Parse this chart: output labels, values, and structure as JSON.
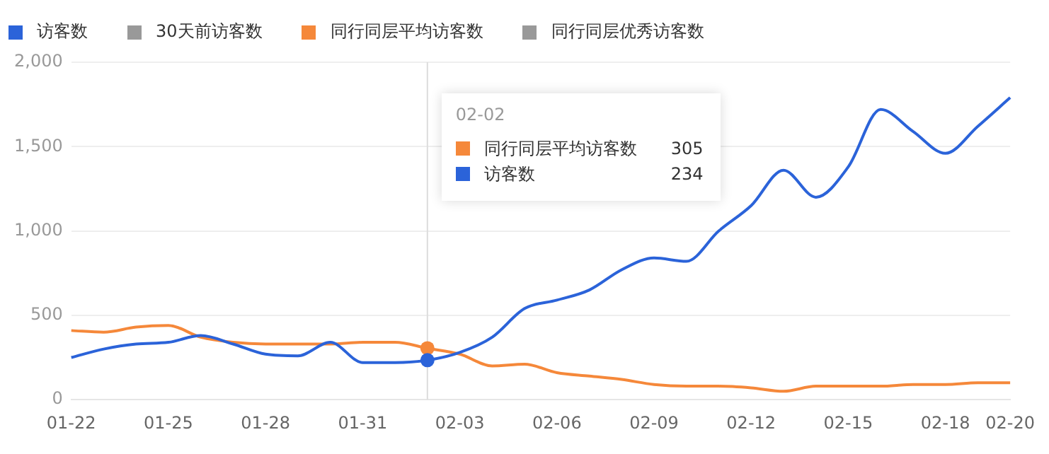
{
  "chart_data": {
    "type": "line",
    "categories": [
      "01-22",
      null,
      null,
      "01-25",
      null,
      null,
      "01-28",
      null,
      null,
      "01-31",
      null,
      null,
      "02-03",
      null,
      null,
      "02-06",
      null,
      null,
      "02-09",
      null,
      null,
      "02-12",
      null,
      null,
      "02-15",
      null,
      null,
      "02-18",
      null,
      "02-20"
    ],
    "series": [
      {
        "name": "访客数",
        "color": "#2b63d9",
        "values": [
          250,
          300,
          330,
          340,
          380,
          330,
          270,
          260,
          340,
          220,
          220,
          234,
          280,
          370,
          540,
          590,
          650,
          770,
          840,
          820,
          1000,
          1150,
          1360,
          1200,
          1380,
          1720,
          1590,
          1460,
          1620,
          1790
        ]
      },
      {
        "name": "30天前访客数",
        "color": "#999999",
        "values": [
          null,
          null,
          null,
          null,
          null,
          null,
          null,
          null,
          null,
          null,
          null,
          null,
          null,
          null,
          null,
          null,
          null,
          null,
          null,
          null,
          null,
          null,
          null,
          null,
          null,
          null,
          null,
          null,
          null,
          null
        ]
      },
      {
        "name": "同行同层平均访客数",
        "color": "#f5883a",
        "values": [
          410,
          400,
          430,
          440,
          370,
          340,
          330,
          330,
          330,
          340,
          340,
          305,
          270,
          200,
          210,
          160,
          140,
          120,
          90,
          80,
          80,
          70,
          50,
          80,
          80,
          80,
          90,
          90,
          100,
          100
        ]
      },
      {
        "name": "同行同层优秀访客数",
        "color": "#999999",
        "values": [
          null,
          null,
          null,
          null,
          null,
          null,
          null,
          null,
          null,
          null,
          null,
          null,
          null,
          null,
          null,
          null,
          null,
          null,
          null,
          null,
          null,
          null,
          null,
          null,
          null,
          null,
          null,
          null,
          null,
          null
        ]
      }
    ],
    "ylim": [
      0,
      2000
    ],
    "yticks": [
      0,
      {
        "value": 500,
        "label": "500"
      },
      {
        "value": 1000,
        "label": "1,000"
      },
      {
        "value": 1500,
        "label": "1,500"
      },
      {
        "value": 2000,
        "label": "2,000"
      }
    ],
    "grid": "y",
    "legend": "top left",
    "marker": "none",
    "line_style": "solid",
    "annotations": [
      "02-02",
      "305",
      "234"
    ]
  }
}
